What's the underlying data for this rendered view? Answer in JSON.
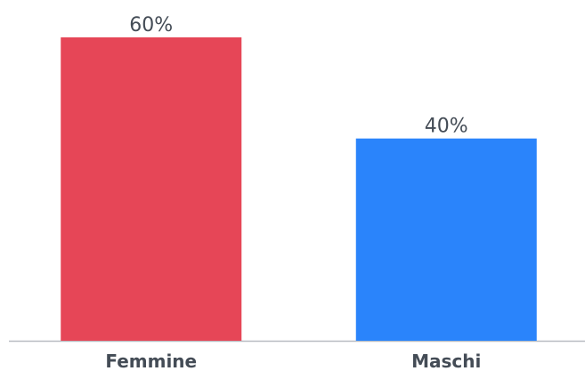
{
  "chart_data": {
    "type": "bar",
    "categories": [
      "Femmine",
      "Maschi"
    ],
    "values": [
      60,
      40
    ],
    "value_labels": [
      "60%",
      "40%"
    ],
    "colors": [
      "#e64657",
      "#2a84fb"
    ]
  }
}
